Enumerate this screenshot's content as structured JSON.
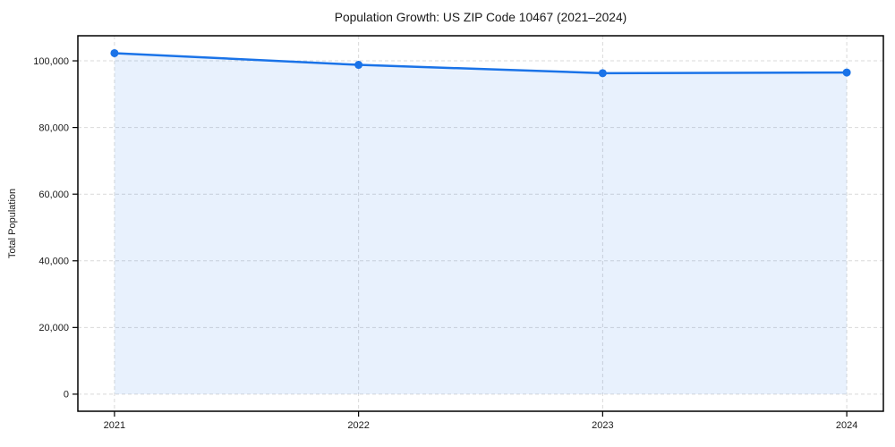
{
  "chart_data": {
    "type": "area",
    "title": "Population Growth: US ZIP Code 10467 (2021–2024)",
    "xlabel": "",
    "ylabel": "Total Population",
    "categories": [
      "2021",
      "2022",
      "2023",
      "2024"
    ],
    "series": [
      {
        "name": "Total Population",
        "values": [
          102300,
          98800,
          96300,
          96500
        ]
      }
    ],
    "ylim": [
      -5120,
      107520
    ],
    "yticks": [
      {
        "value": 0,
        "label": "0"
      },
      {
        "value": 20000,
        "label": "20,000"
      },
      {
        "value": 40000,
        "label": "40,000"
      },
      {
        "value": 60000,
        "label": "60,000"
      },
      {
        "value": 80000,
        "label": "80,000"
      },
      {
        "value": 100000,
        "label": "100,000"
      }
    ],
    "grid": true,
    "grid_style": "dashed",
    "legend_position": "none",
    "marker": "circle",
    "colors": {
      "line": "#1a73e8",
      "fill": "#1a73e8",
      "fill_opacity": 0.1,
      "grid": "#d9d9d9",
      "spine": "#000000",
      "text": "#1a1a1a",
      "background": "#ffffff"
    }
  }
}
